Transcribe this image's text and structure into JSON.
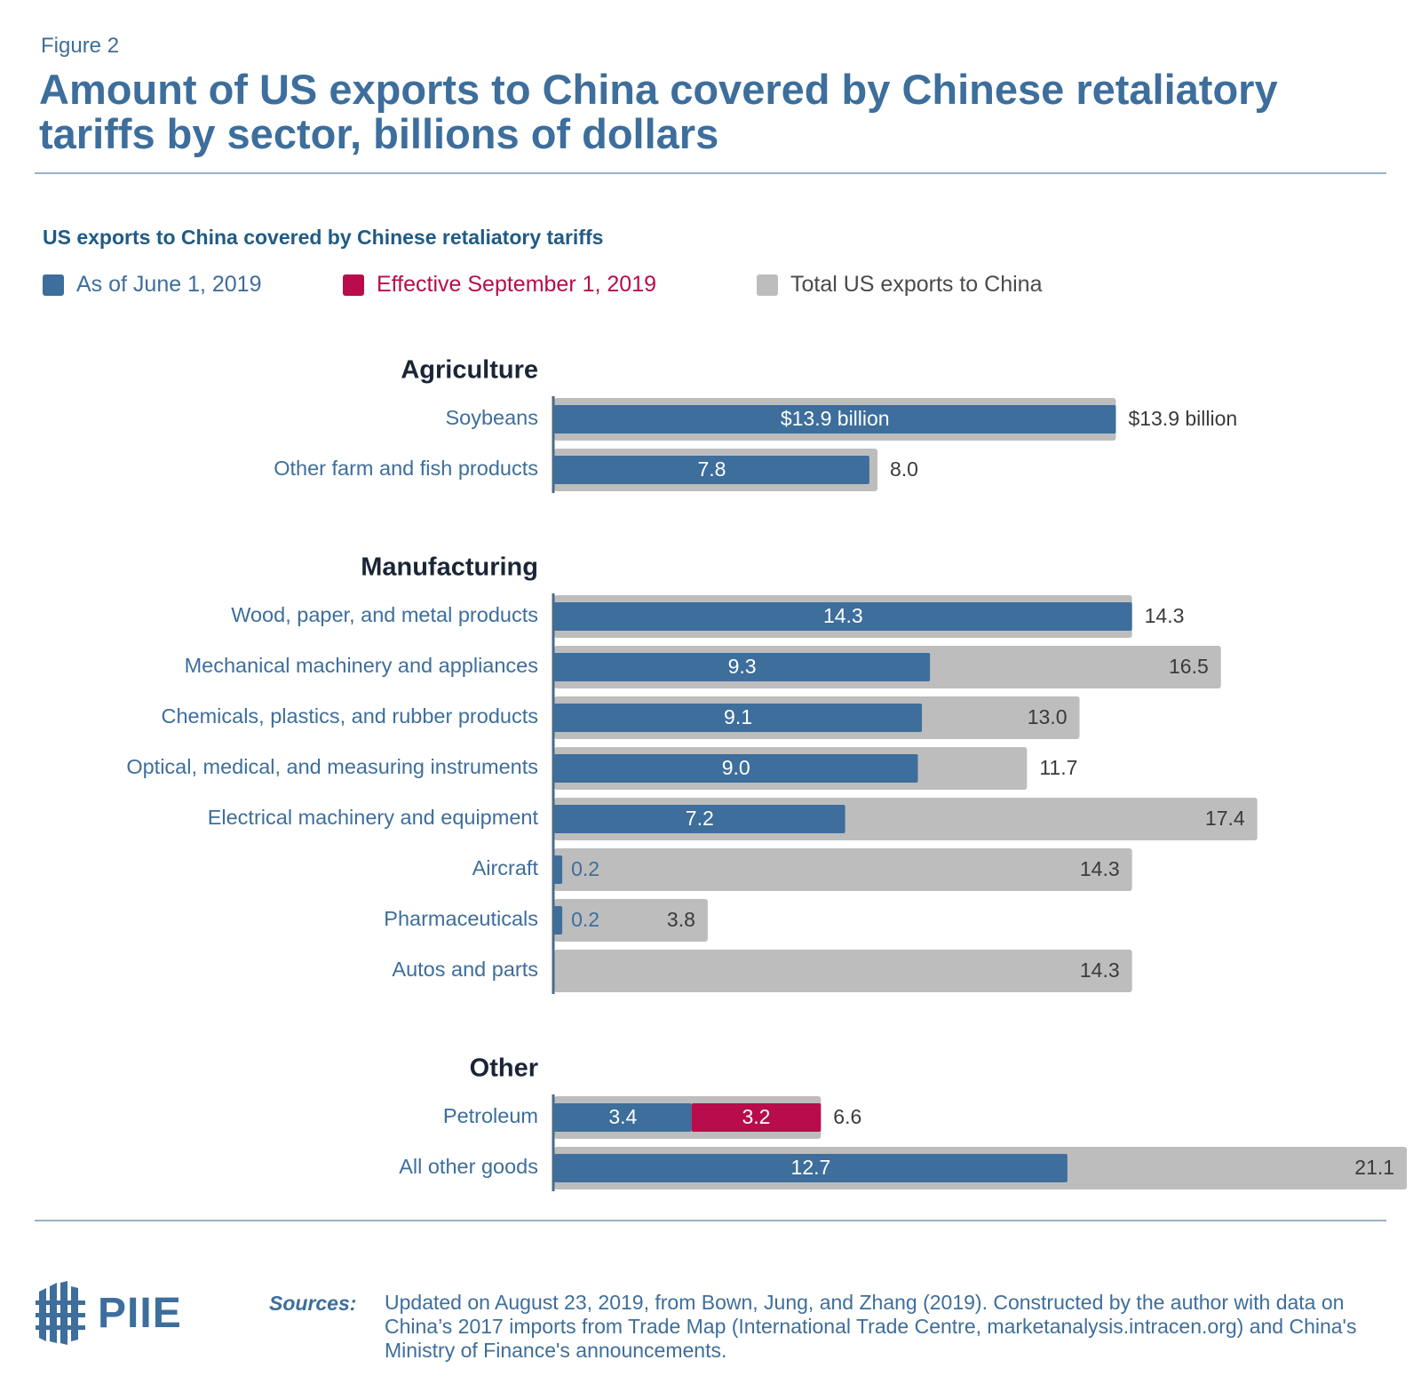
{
  "figure_label": "Figure 2",
  "title": "Amount of US exports to China covered by Chinese retaliatory tariffs by sector, billions of dollars",
  "colors": {
    "june": "#3d6e9c",
    "september": "#b80c4d",
    "total": "#bdbdbd",
    "category": "#1a2535",
    "accent": "#3d6e9c"
  },
  "chart_data": {
    "type": "bar",
    "subtitle": "US exports to China covered by Chinese retaliatory tariffs",
    "legend": [
      {
        "key": "june",
        "label": "As of June 1, 2019"
      },
      {
        "key": "september",
        "label": "Effective September 1, 2019"
      },
      {
        "key": "total",
        "label": "Total US exports to China"
      }
    ],
    "groups": [
      {
        "name": "Agriculture",
        "items": [
          {
            "label": "Soybeans",
            "june": 13.9,
            "september": 0,
            "total": 13.9,
            "june_label": "$13.9 billion",
            "total_label": "$13.9 billion"
          },
          {
            "label": "Other farm and fish products",
            "june": 7.8,
            "september": 0,
            "total": 8.0,
            "june_label": "7.8",
            "total_label": "8.0"
          }
        ]
      },
      {
        "name": "Manufacturing",
        "items": [
          {
            "label": "Wood, paper, and metal products",
            "june": 14.3,
            "september": 0,
            "total": 14.3,
            "june_label": "14.3",
            "total_label": "14.3"
          },
          {
            "label": "Mechanical machinery and appliances",
            "june": 9.3,
            "september": 0,
            "total": 16.5,
            "june_label": "9.3",
            "total_label": "16.5"
          },
          {
            "label": "Chemicals, plastics, and rubber products",
            "june": 9.1,
            "september": 0,
            "total": 13.0,
            "june_label": "9.1",
            "total_label": "13.0"
          },
          {
            "label": "Optical, medical, and measuring instruments",
            "june": 9.0,
            "september": 0,
            "total": 11.7,
            "june_label": "9.0",
            "total_label": "11.7"
          },
          {
            "label": "Electrical machinery and equipment",
            "june": 7.2,
            "september": 0,
            "total": 17.4,
            "june_label": "7.2",
            "total_label": "17.4"
          },
          {
            "label": "Aircraft",
            "june": 0.2,
            "september": 0,
            "total": 14.3,
            "june_label": "0.2",
            "total_label": "14.3"
          },
          {
            "label": "Pharmaceuticals",
            "june": 0.2,
            "september": 0,
            "total": 3.8,
            "june_label": "0.2",
            "total_label": "3.8"
          },
          {
            "label": "Autos and parts",
            "june": 0,
            "september": 0,
            "total": 14.3,
            "june_label": "",
            "total_label": "14.3"
          }
        ]
      },
      {
        "name": "Other",
        "items": [
          {
            "label": "Petroleum",
            "june": 3.4,
            "september": 3.2,
            "total": 6.6,
            "june_label": "3.4",
            "september_label": "3.2",
            "total_label": "6.6"
          },
          {
            "label": "All other goods",
            "june": 12.7,
            "september": 0,
            "total": 21.1,
            "june_label": "12.7",
            "total_label": "21.1"
          }
        ]
      }
    ]
  },
  "sources": {
    "label": "Sources:",
    "text": "Updated on August 23, 2019, from Bown, Jung, and Zhang (2019). Constructed by the author with data on China’s 2017 imports from Trade Map (International Trade Centre, marketanalysis.intracen.org) and China's Ministry of Finance's announcements."
  },
  "logo": {
    "text": "PIIE",
    "icon": "piie-grid-logo-icon"
  }
}
